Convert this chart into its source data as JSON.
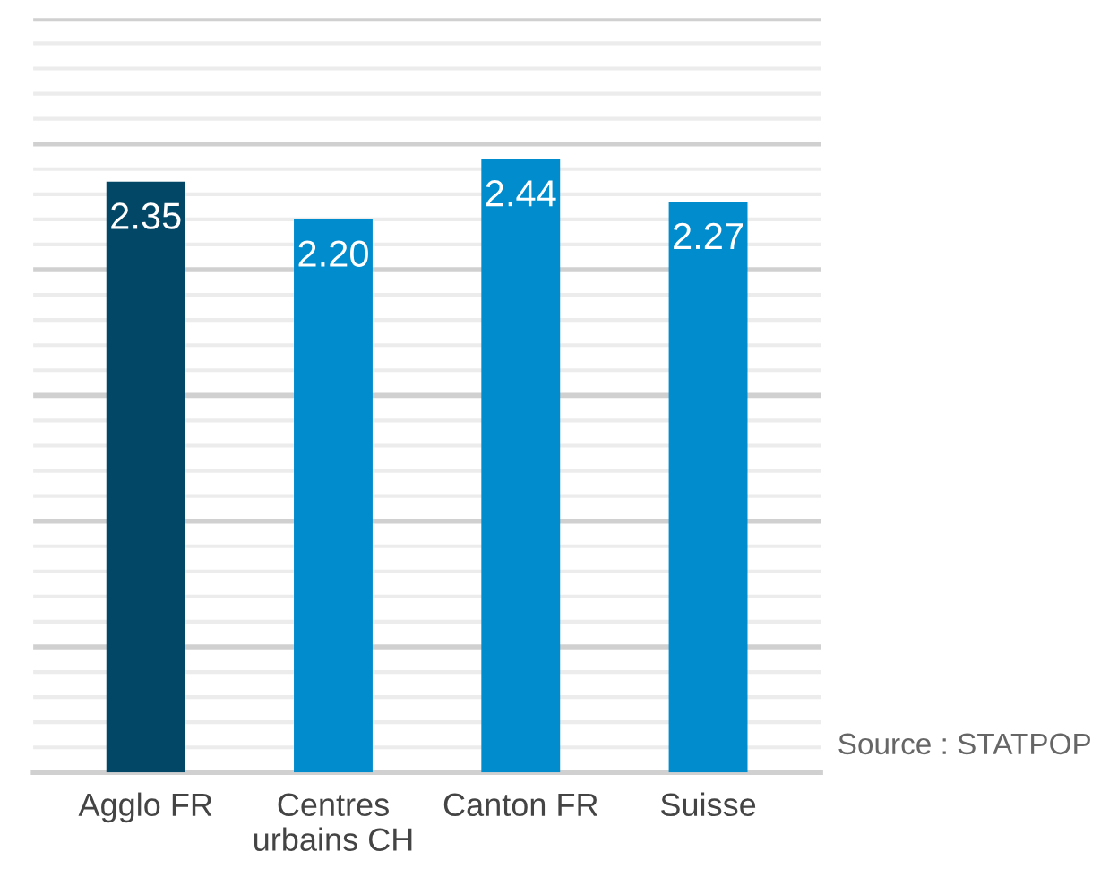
{
  "chart_data": {
    "type": "bar",
    "categories": [
      "Agglo FR",
      "Centres\nurbains CH",
      "Canton FR",
      "Suisse"
    ],
    "values": [
      2.35,
      2.2,
      2.44,
      2.27
    ],
    "colors": [
      "#034766",
      "#008ccd",
      "#008ccd",
      "#008ccd"
    ],
    "value_labels": [
      "2.35",
      "2.20",
      "2.44",
      "2.27"
    ],
    "ylim": [
      0,
      3
    ],
    "yticks": [
      {
        "value": 0,
        "label": null
      },
      {
        "value": 0.1,
        "label": null
      },
      {
        "value": 0.2,
        "label": null
      },
      {
        "value": 0.3,
        "label": null
      },
      {
        "value": 0.4,
        "label": null
      },
      {
        "value": 0.5,
        "label": null
      },
      {
        "value": 0.6,
        "label": null
      },
      {
        "value": 0.7,
        "label": null
      },
      {
        "value": 0.8,
        "label": null
      },
      {
        "value": 0.9,
        "label": null
      },
      {
        "value": 1.0,
        "label": null
      },
      {
        "value": 1.1,
        "label": null
      },
      {
        "value": 1.2,
        "label": null
      },
      {
        "value": 1.3,
        "label": null
      },
      {
        "value": 1.4,
        "label": null
      },
      {
        "value": 1.5,
        "label": null
      },
      {
        "value": 1.6,
        "label": null
      },
      {
        "value": 1.7,
        "label": null
      },
      {
        "value": 1.8,
        "label": null
      },
      {
        "value": 1.9,
        "label": null
      },
      {
        "value": 2.0,
        "label": null
      },
      {
        "value": 2.1,
        "label": null
      },
      {
        "value": 2.2,
        "label": null
      },
      {
        "value": 2.3,
        "label": null
      },
      {
        "value": 2.4,
        "label": null
      },
      {
        "value": 2.5,
        "label": null
      },
      {
        "value": 2.6,
        "label": null
      },
      {
        "value": 2.7,
        "label": null
      },
      {
        "value": 2.8,
        "label": null
      },
      {
        "value": 2.9,
        "label": null
      },
      {
        "value": 3.0,
        "label": null
      }
    ],
    "tick_labels": "x",
    "grid": "y",
    "annotations": [
      "Source : STATPOP"
    ]
  }
}
